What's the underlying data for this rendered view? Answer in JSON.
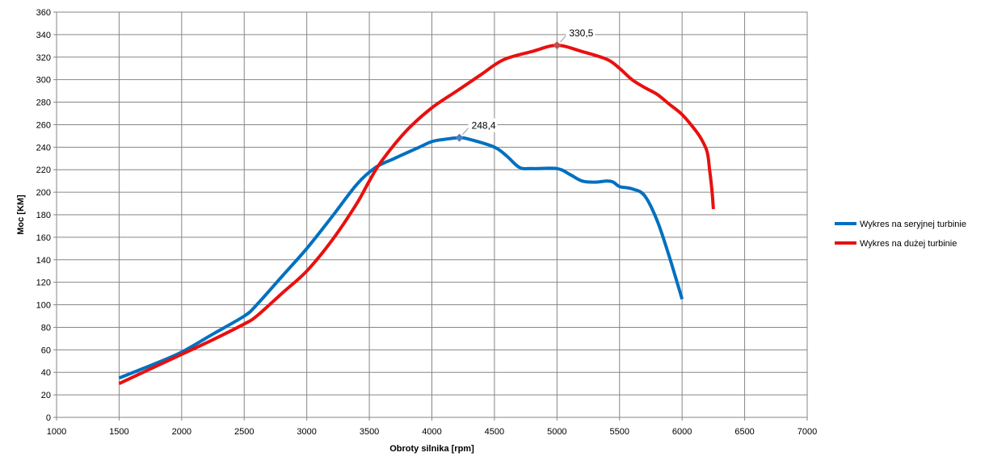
{
  "chart_data": {
    "type": "line",
    "title": "",
    "xlabel": "Obroty silnika  [rpm]",
    "ylabel": "Moc [KM]",
    "xlim": [
      1000,
      7000
    ],
    "ylim": [
      0,
      360
    ],
    "xticks": [
      1000,
      1500,
      2000,
      2500,
      3000,
      3500,
      4000,
      4500,
      5000,
      5500,
      6000,
      6500,
      7000
    ],
    "yticks": [
      0,
      20,
      40,
      60,
      80,
      100,
      120,
      140,
      160,
      180,
      200,
      220,
      240,
      260,
      280,
      300,
      320,
      340,
      360
    ],
    "grid": true,
    "legend_position": "right",
    "series": [
      {
        "name": "Wykres na seryjnej turbinie",
        "color": "#0070C0",
        "x": [
          1500,
          1750,
          2000,
          2250,
          2500,
          2600,
          2800,
          3000,
          3200,
          3400,
          3550,
          3700,
          3900,
          4000,
          4100,
          4220,
          4300,
          4500,
          4600,
          4700,
          4800,
          5000,
          5100,
          5200,
          5300,
          5400,
          5450,
          5500,
          5600,
          5700,
          5800,
          5900,
          6000
        ],
        "y": [
          35,
          46,
          58,
          74,
          90,
          100,
          125,
          150,
          178,
          207,
          222,
          230,
          240,
          245,
          247,
          248.4,
          247,
          240,
          232,
          222,
          221,
          221,
          216,
          210,
          209,
          210,
          209,
          205,
          203,
          197,
          175,
          142,
          105
        ]
      },
      {
        "name": "Wykres na dużej turbinie",
        "color": "#E8100F",
        "x": [
          1500,
          1750,
          2000,
          2250,
          2500,
          2600,
          2800,
          3000,
          3200,
          3400,
          3500,
          3600,
          3800,
          4000,
          4200,
          4400,
          4500,
          4600,
          4800,
          5000,
          5200,
          5400,
          5500,
          5600,
          5700,
          5800,
          5900,
          6000,
          6100,
          6150,
          6200,
          6220,
          6240,
          6250
        ],
        "y": [
          30,
          43,
          56,
          69,
          83,
          90,
          110,
          130,
          157,
          190,
          210,
          228,
          255,
          275,
          290,
          305,
          313,
          319,
          325,
          330.5,
          325,
          318,
          310,
          300,
          293,
          287,
          278,
          269,
          256,
          248,
          236,
          220,
          200,
          185
        ]
      }
    ],
    "annotations": [
      {
        "series": 0,
        "x": 4220,
        "y": 248.4,
        "text": "248,4",
        "marker_color": "#4F7FC0"
      },
      {
        "series": 1,
        "x": 5000,
        "y": 330.5,
        "text": "330,5",
        "marker_color": "#C0504D"
      }
    ]
  }
}
